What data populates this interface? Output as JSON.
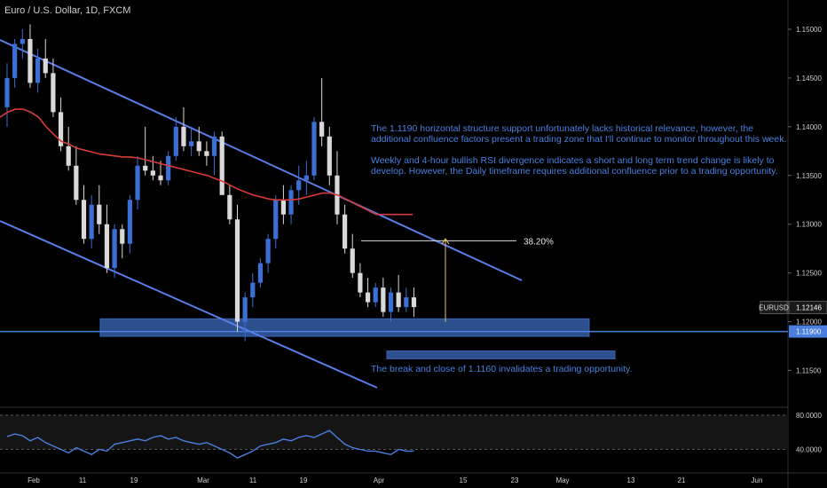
{
  "chart_data": {
    "type": "candlestick",
    "title": "Euro / U.S. Dollar, 1D, FXCM",
    "symbol": "EURUSD",
    "last_price": "1.12146",
    "ylim": [
      1.1115,
      1.153
    ],
    "y_ticks": [
      "1.15000",
      "1.14500",
      "1.14000",
      "1.13500",
      "1.13000",
      "1.12500",
      "1.12000",
      "1.11500"
    ],
    "x_ticks": [
      "Feb",
      "11",
      "19",
      "Mar",
      "11",
      "19",
      "Apr",
      "15",
      "23",
      "May",
      "13",
      "21",
      "Jun"
    ],
    "support_level": "1.11900",
    "fib_label": "38.20%",
    "annotation_top_1": "The 1.1190 horizontal structure support unfortunately lacks historical relevance, however, the additional confluence factors present a trading zone that I'll continue to monitor throughout this week.",
    "annotation_top_2": "Weekly and 4-hour bullish RSI divergence indicates a short and long term trend change is likely to develop. However, the Daily timeframe requires additional confluence prior to a trading opportunity.",
    "annotation_bottom": "The break and close of 1.1160 invalidates a trading opportunity.",
    "colors": {
      "up": "#3b6fd6",
      "down": "#d9d9d9",
      "ma": "#d63a3a",
      "channel": "#5b7de8",
      "zone": "#2c4f8e",
      "support": "#4a7fe0"
    },
    "candles": [
      [
        1.142,
        1.1465,
        1.14,
        1.145
      ],
      [
        1.145,
        1.149,
        1.144,
        1.1485
      ],
      [
        1.1485,
        1.15,
        1.147,
        1.149
      ],
      [
        1.149,
        1.1505,
        1.144,
        1.1445
      ],
      [
        1.1445,
        1.148,
        1.1435,
        1.147
      ],
      [
        1.147,
        1.149,
        1.145,
        1.1455
      ],
      [
        1.1455,
        1.147,
        1.141,
        1.1415
      ],
      [
        1.1415,
        1.143,
        1.1375,
        1.138
      ],
      [
        1.138,
        1.14,
        1.1355,
        1.136
      ],
      [
        1.136,
        1.138,
        1.132,
        1.1325
      ],
      [
        1.1325,
        1.134,
        1.128,
        1.1285
      ],
      [
        1.1285,
        1.133,
        1.1275,
        1.132
      ],
      [
        1.132,
        1.134,
        1.129,
        1.13
      ],
      [
        1.13,
        1.132,
        1.125,
        1.1255
      ],
      [
        1.1255,
        1.13,
        1.1245,
        1.1295
      ],
      [
        1.1295,
        1.13,
        1.1265,
        1.128
      ],
      [
        1.128,
        1.133,
        1.127,
        1.1325
      ],
      [
        1.1325,
        1.137,
        1.1315,
        1.136
      ],
      [
        1.136,
        1.14,
        1.135,
        1.1355
      ],
      [
        1.1355,
        1.137,
        1.1345,
        1.135
      ],
      [
        1.135,
        1.1365,
        1.134,
        1.1345
      ],
      [
        1.1345,
        1.1375,
        1.134,
        1.137
      ],
      [
        1.137,
        1.141,
        1.1365,
        1.14
      ],
      [
        1.14,
        1.142,
        1.1375,
        1.138
      ],
      [
        1.138,
        1.14,
        1.137,
        1.1385
      ],
      [
        1.1385,
        1.14,
        1.137,
        1.1375
      ],
      [
        1.1375,
        1.1385,
        1.136,
        1.137
      ],
      [
        1.137,
        1.1395,
        1.135,
        1.139
      ],
      [
        1.139,
        1.1395,
        1.133,
        1.133
      ],
      [
        1.133,
        1.134,
        1.13,
        1.1305
      ],
      [
        1.1305,
        1.132,
        1.119,
        1.12
      ],
      [
        1.12,
        1.123,
        1.118,
        1.1225
      ],
      [
        1.1225,
        1.125,
        1.1215,
        1.124
      ],
      [
        1.124,
        1.1265,
        1.1235,
        1.126
      ],
      [
        1.126,
        1.129,
        1.125,
        1.1285
      ],
      [
        1.1285,
        1.133,
        1.1275,
        1.1325
      ],
      [
        1.1325,
        1.134,
        1.13,
        1.131
      ],
      [
        1.131,
        1.134,
        1.13,
        1.1335
      ],
      [
        1.1335,
        1.136,
        1.132,
        1.1345
      ],
      [
        1.1345,
        1.1365,
        1.133,
        1.135
      ],
      [
        1.135,
        1.141,
        1.1345,
        1.1405
      ],
      [
        1.1405,
        1.145,
        1.138,
        1.139
      ],
      [
        1.139,
        1.14,
        1.134,
        1.135
      ],
      [
        1.135,
        1.1375,
        1.13,
        1.131
      ],
      [
        1.131,
        1.132,
        1.127,
        1.1275
      ],
      [
        1.1275,
        1.129,
        1.1245,
        1.125
      ],
      [
        1.125,
        1.126,
        1.1225,
        1.123
      ],
      [
        1.123,
        1.1245,
        1.1215,
        1.122
      ],
      [
        1.122,
        1.124,
        1.1215,
        1.1235
      ],
      [
        1.1235,
        1.1245,
        1.1205,
        1.121
      ],
      [
        1.121,
        1.1235,
        1.12,
        1.123
      ],
      [
        1.123,
        1.1248,
        1.121,
        1.1215
      ],
      [
        1.1215,
        1.1235,
        1.121,
        1.1225
      ],
      [
        1.1225,
        1.1235,
        1.1205,
        1.1215
      ]
    ],
    "ma_points": [
      [
        1.141
      ],
      [
        1.1415
      ],
      [
        1.1418
      ],
      [
        1.1418
      ],
      [
        1.1415
      ],
      [
        1.141
      ],
      [
        1.14
      ],
      [
        1.1392
      ],
      [
        1.1385
      ],
      [
        1.1382
      ],
      [
        1.1378
      ],
      [
        1.1376
      ],
      [
        1.1374
      ],
      [
        1.1372
      ],
      [
        1.1371
      ],
      [
        1.137
      ],
      [
        1.1369
      ],
      [
        1.1369
      ],
      [
        1.1368
      ],
      [
        1.1366
      ],
      [
        1.1364
      ],
      [
        1.1362
      ],
      [
        1.136
      ],
      [
        1.1358
      ],
      [
        1.1356
      ],
      [
        1.1354
      ],
      [
        1.1352
      ],
      [
        1.135
      ],
      [
        1.1347
      ],
      [
        1.1344
      ],
      [
        1.134
      ],
      [
        1.1336
      ],
      [
        1.1333
      ],
      [
        1.133
      ],
      [
        1.1328
      ],
      [
        1.1326
      ],
      [
        1.1325
      ],
      [
        1.1325
      ],
      [
        1.1325
      ],
      [
        1.1326
      ],
      [
        1.1328
      ],
      [
        1.133
      ],
      [
        1.1332
      ],
      [
        1.1332
      ],
      [
        1.133
      ],
      [
        1.1326
      ],
      [
        1.1322
      ],
      [
        1.1318
      ],
      [
        1.1314
      ],
      [
        1.131
      ]
    ],
    "rsi": {
      "ticks": [
        "80.0000",
        "40.0000"
      ],
      "ylim": [
        25,
        85
      ],
      "values": [
        55,
        58,
        56,
        50,
        54,
        48,
        44,
        40,
        36,
        42,
        38,
        34,
        40,
        38,
        46,
        48,
        50,
        52,
        50,
        54,
        56,
        52,
        54,
        50,
        48,
        46,
        48,
        44,
        40,
        36,
        30,
        34,
        38,
        44,
        46,
        48,
        52,
        50,
        54,
        56,
        54,
        58,
        62,
        54,
        46,
        42,
        40,
        38,
        38,
        36,
        34,
        40,
        38,
        38
      ]
    },
    "fib_arrow": {
      "from": 1.12,
      "to": 1.1285
    },
    "support_zone": [
      1.1185,
      1.1203
    ],
    "invalidation_zone": [
      1.1162,
      1.117
    ]
  }
}
